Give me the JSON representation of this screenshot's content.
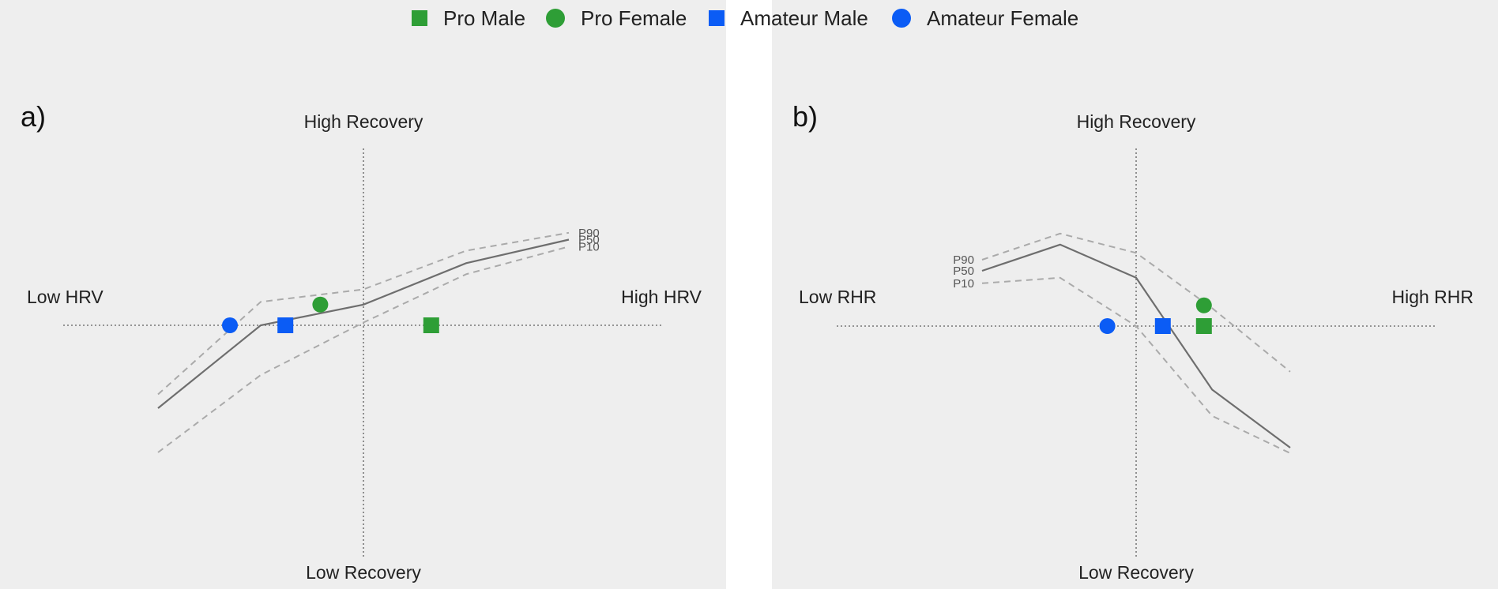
{
  "colors": {
    "pro": "#2e9e36",
    "amateur": "#0b5cf5",
    "p50": "#6e6e6e",
    "dashed": "#aaaaaa",
    "axis": "#777777",
    "bg": "#eeeeee"
  },
  "legend": [
    {
      "label": "Pro Male",
      "shape": "square",
      "color": "#2e9e36"
    },
    {
      "label": "Pro Female",
      "shape": "circle",
      "color": "#2e9e36"
    },
    {
      "label": "Amateur Male",
      "shape": "square",
      "color": "#0b5cf5"
    },
    {
      "label": "Amateur Female",
      "shape": "circle",
      "color": "#0b5cf5"
    }
  ],
  "chart_data": [
    {
      "type": "line",
      "panel_label": "a)",
      "top_label": "High Recovery",
      "bottom_label": "Low Recovery",
      "left_label": "Low HRV",
      "right_label": "High HRV",
      "xlim": [
        -1.5,
        1.5
      ],
      "ylim": [
        -1.2,
        1.0
      ],
      "series": [
        {
          "name": "P90",
          "style": "dashed",
          "x": [
            -1.0,
            -0.5,
            0.0,
            0.5,
            1.0
          ],
          "y": [
            -0.5,
            0.17,
            0.26,
            0.54,
            0.67
          ]
        },
        {
          "name": "P50",
          "style": "solid",
          "x": [
            -1.0,
            -0.5,
            0.0,
            0.5,
            1.0
          ],
          "y": [
            -0.6,
            0.0,
            0.15,
            0.45,
            0.62
          ]
        },
        {
          "name": "P10",
          "style": "dashed",
          "x": [
            -1.0,
            -0.5,
            0.0,
            0.5,
            1.0
          ],
          "y": [
            -0.92,
            -0.36,
            0.02,
            0.37,
            0.57
          ]
        }
      ],
      "points": [
        {
          "name": "Pro Male",
          "shape": "square",
          "color": "#2e9e36",
          "x": 0.33,
          "y": 0.0
        },
        {
          "name": "Pro Female",
          "shape": "circle",
          "color": "#2e9e36",
          "x": -0.21,
          "y": 0.15
        },
        {
          "name": "Amateur Male",
          "shape": "square",
          "color": "#0b5cf5",
          "x": -0.38,
          "y": 0.0
        },
        {
          "name": "Amateur Female",
          "shape": "circle",
          "color": "#0b5cf5",
          "x": -0.65,
          "y": 0.0
        }
      ]
    },
    {
      "type": "line",
      "panel_label": "b)",
      "top_label": "High Recovery",
      "bottom_label": "Low Recovery",
      "left_label": "Low RHR",
      "right_label": "High RHR",
      "xlim": [
        -1.5,
        1.5
      ],
      "ylim": [
        -1.2,
        1.0
      ],
      "series": [
        {
          "name": "P90",
          "style": "dashed",
          "x": [
            -0.75,
            -0.37,
            0.0,
            0.37,
            0.75
          ],
          "y": [
            0.48,
            0.67,
            0.53,
            0.13,
            -0.33
          ]
        },
        {
          "name": "P50",
          "style": "solid",
          "x": [
            -0.75,
            -0.37,
            0.0,
            0.37,
            0.75
          ],
          "y": [
            0.4,
            0.59,
            0.35,
            -0.46,
            -0.88
          ]
        },
        {
          "name": "P10",
          "style": "dashed",
          "x": [
            -0.75,
            -0.37,
            0.0,
            0.37,
            0.75
          ],
          "y": [
            0.31,
            0.35,
            0.0,
            -0.65,
            -0.92
          ]
        }
      ],
      "points": [
        {
          "name": "Pro Male",
          "shape": "square",
          "color": "#2e9e36",
          "x": 0.33,
          "y": 0.0
        },
        {
          "name": "Pro Female",
          "shape": "circle",
          "color": "#2e9e36",
          "x": 0.33,
          "y": 0.15
        },
        {
          "name": "Amateur Male",
          "shape": "square",
          "color": "#0b5cf5",
          "x": 0.13,
          "y": 0.0
        },
        {
          "name": "Amateur Female",
          "shape": "circle",
          "color": "#0b5cf5",
          "x": -0.14,
          "y": 0.0
        }
      ]
    }
  ]
}
